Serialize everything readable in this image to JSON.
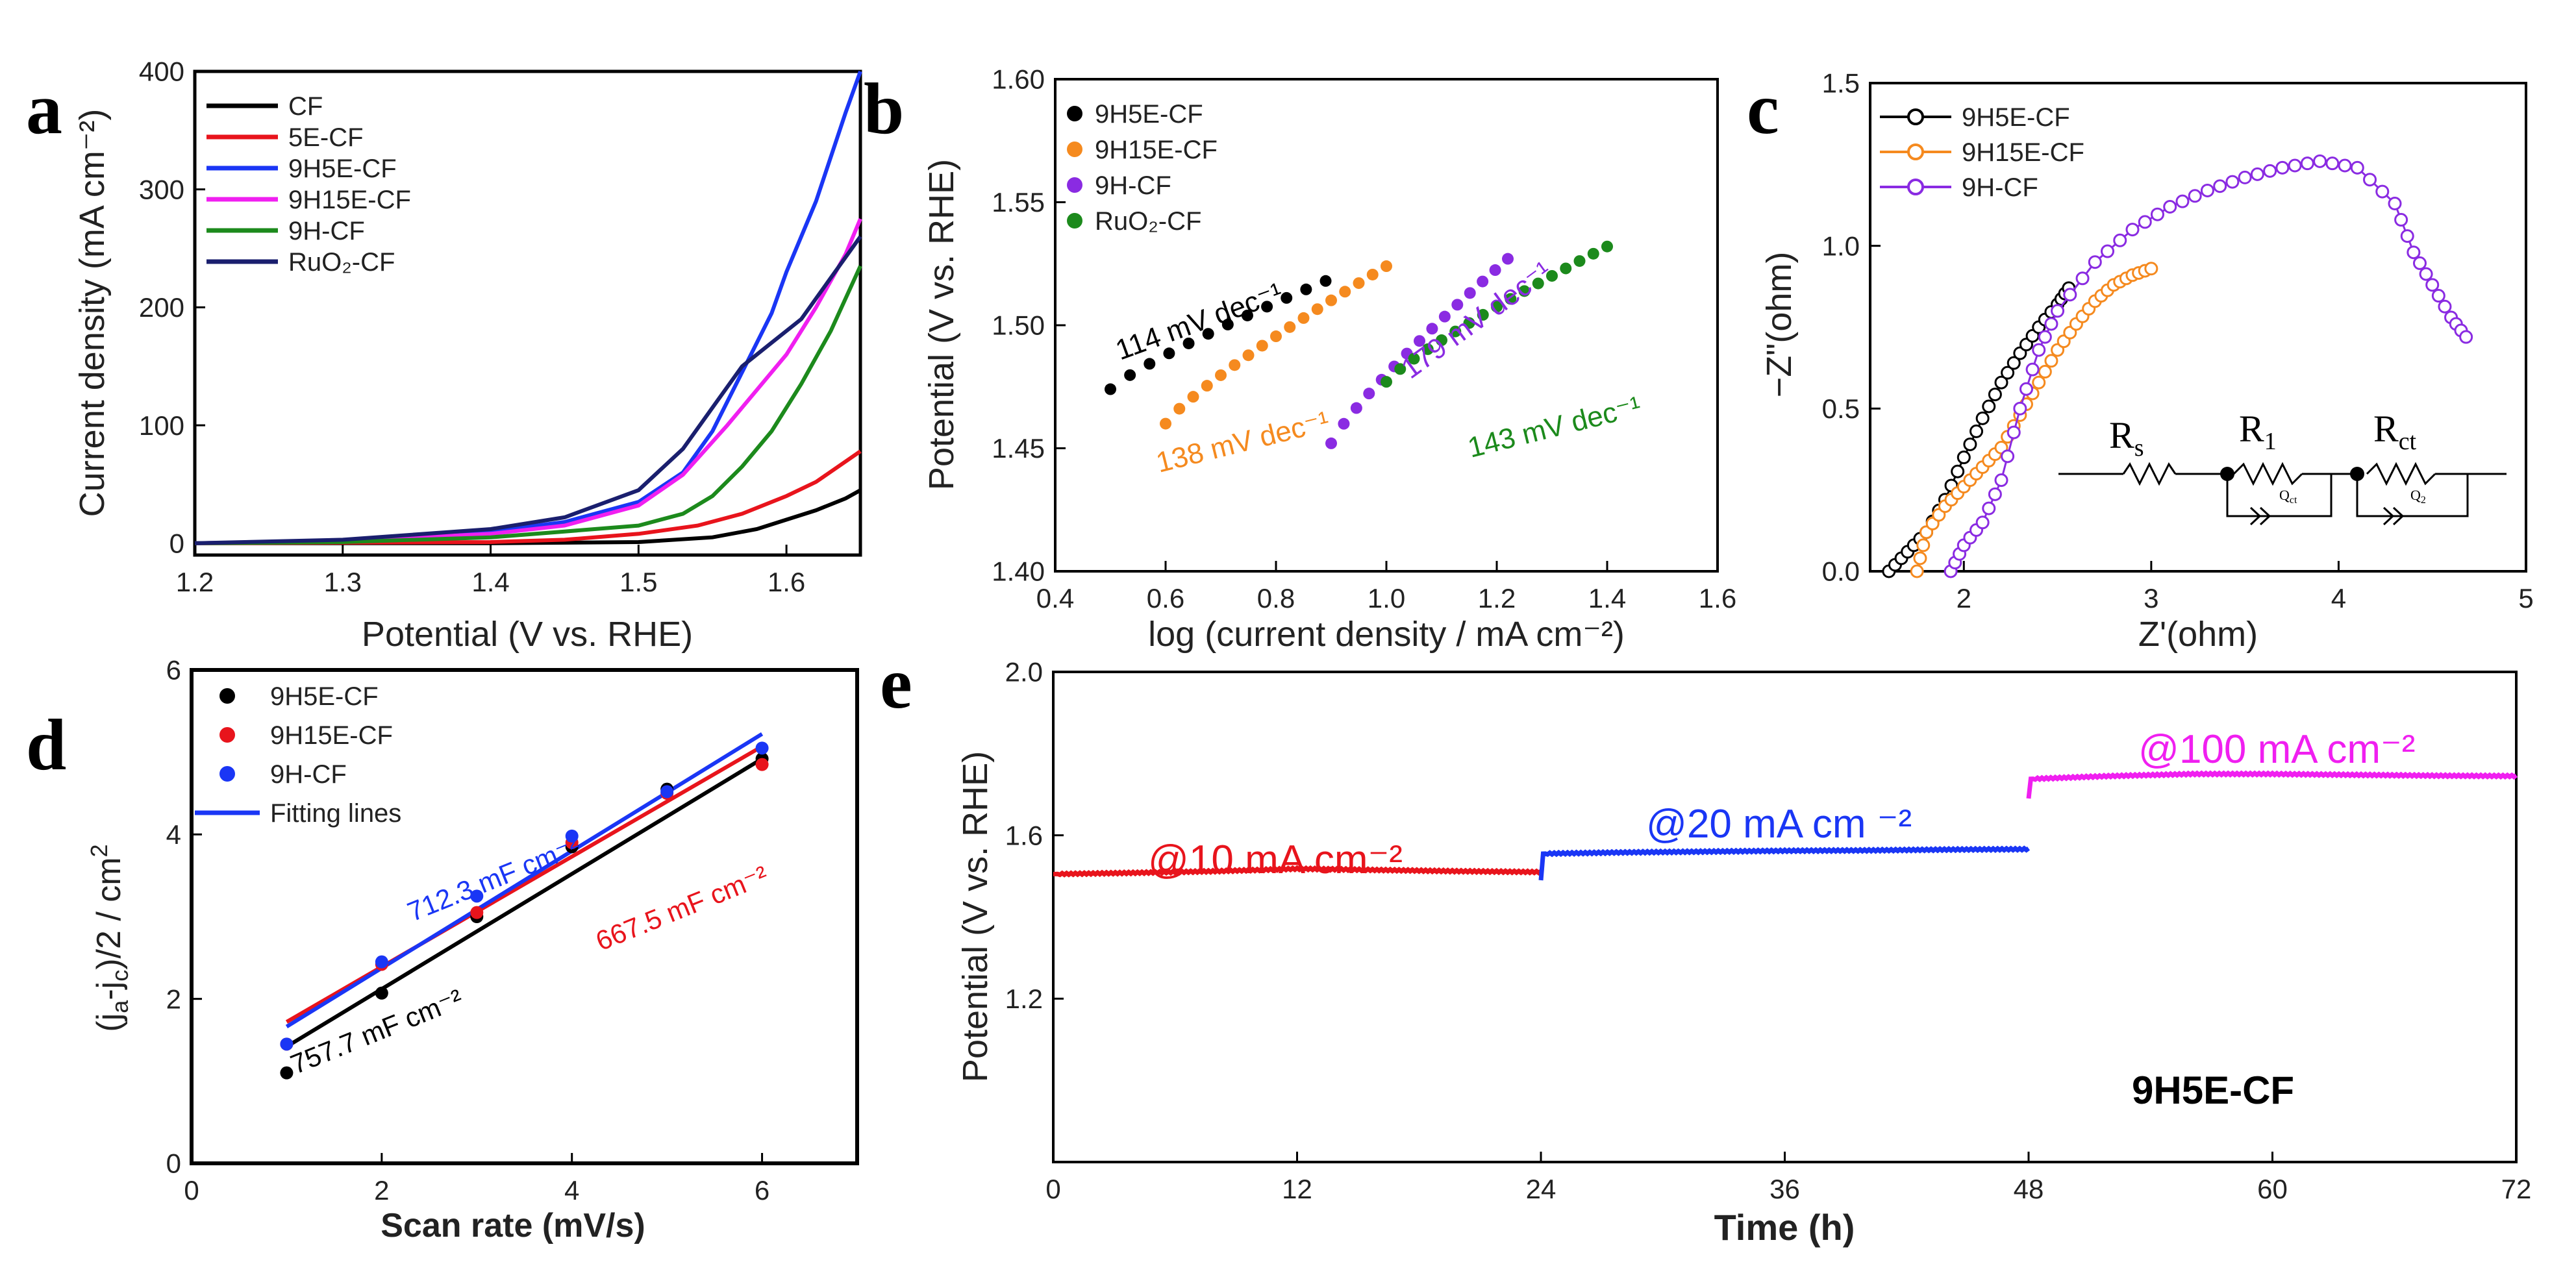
{
  "figure": {
    "panel_labels": [
      "a",
      "b",
      "c",
      "d",
      "e"
    ]
  },
  "chart_data": [
    {
      "panel": "a",
      "type": "line",
      "xlabel": "Potential (V vs. RHE)",
      "ylabel": "Current density (mA cm⁻²)",
      "xlim": [
        1.2,
        1.65
      ],
      "ylim": [
        -10,
        400
      ],
      "xticks": [
        1.2,
        1.3,
        1.4,
        1.5,
        1.6
      ],
      "yticks": [
        0,
        100,
        200,
        300,
        400
      ],
      "legend_position": "top-left",
      "series": [
        {
          "name": "CF",
          "label": "CF",
          "color": "#000000",
          "points": [
            [
              1.2,
              0
            ],
            [
              1.4,
              0
            ],
            [
              1.5,
              1
            ],
            [
              1.55,
              5
            ],
            [
              1.58,
              12
            ],
            [
              1.6,
              20
            ],
            [
              1.62,
              28
            ],
            [
              1.64,
              38
            ],
            [
              1.65,
              45
            ]
          ]
        },
        {
          "name": "5E-CF",
          "label": "5E-CF",
          "color": "#e8141c",
          "points": [
            [
              1.2,
              0
            ],
            [
              1.4,
              1
            ],
            [
              1.45,
              3
            ],
            [
              1.5,
              8
            ],
            [
              1.54,
              15
            ],
            [
              1.57,
              25
            ],
            [
              1.6,
              40
            ],
            [
              1.62,
              52
            ],
            [
              1.65,
              78
            ]
          ]
        },
        {
          "name": "9H5E-CF",
          "label": "9H5E-CF",
          "color": "#1a36f5",
          "points": [
            [
              1.2,
              0
            ],
            [
              1.3,
              2
            ],
            [
              1.4,
              10
            ],
            [
              1.45,
              18
            ],
            [
              1.5,
              35
            ],
            [
              1.53,
              60
            ],
            [
              1.55,
              95
            ],
            [
              1.57,
              145
            ],
            [
              1.59,
              195
            ],
            [
              1.6,
              230
            ],
            [
              1.62,
              290
            ],
            [
              1.64,
              365
            ],
            [
              1.65,
              400
            ]
          ]
        },
        {
          "name": "9H15E-CF",
          "label": "9H15E-CF",
          "color": "#f01ff0",
          "points": [
            [
              1.2,
              0
            ],
            [
              1.3,
              2
            ],
            [
              1.4,
              8
            ],
            [
              1.45,
              15
            ],
            [
              1.5,
              32
            ],
            [
              1.53,
              58
            ],
            [
              1.56,
              100
            ],
            [
              1.58,
              130
            ],
            [
              1.6,
              160
            ],
            [
              1.62,
              200
            ],
            [
              1.64,
              245
            ],
            [
              1.65,
              275
            ]
          ]
        },
        {
          "name": "9H-CF",
          "label": "9H-CF",
          "color": "#1c8a1c",
          "points": [
            [
              1.2,
              0
            ],
            [
              1.3,
              1
            ],
            [
              1.4,
              5
            ],
            [
              1.45,
              10
            ],
            [
              1.5,
              15
            ],
            [
              1.53,
              25
            ],
            [
              1.55,
              40
            ],
            [
              1.57,
              65
            ],
            [
              1.59,
              95
            ],
            [
              1.61,
              135
            ],
            [
              1.63,
              180
            ],
            [
              1.65,
              235
            ]
          ]
        },
        {
          "name": "RuO2-CF",
          "label": "RuO₂-CF",
          "color": "#1a1f6e",
          "points": [
            [
              1.2,
              0
            ],
            [
              1.3,
              3
            ],
            [
              1.4,
              12
            ],
            [
              1.45,
              22
            ],
            [
              1.5,
              45
            ],
            [
              1.53,
              80
            ],
            [
              1.55,
              115
            ],
            [
              1.57,
              150
            ],
            [
              1.59,
              170
            ],
            [
              1.61,
              190
            ],
            [
              1.63,
              225
            ],
            [
              1.65,
              260
            ]
          ]
        }
      ]
    },
    {
      "panel": "b",
      "type": "scatter",
      "xlabel": "log (current density / mA cm⁻²)",
      "ylabel": "Potential (V vs. RHE)",
      "xlim": [
        0.4,
        1.6
      ],
      "ylim": [
        1.4,
        1.6
      ],
      "xticks": [
        0.4,
        0.6,
        0.8,
        1.0,
        1.2,
        1.4,
        1.6
      ],
      "yticks": [
        1.4,
        1.45,
        1.5,
        1.55,
        1.6
      ],
      "legend_position": "top-left",
      "series": [
        {
          "name": "9H5E-CF",
          "label": "9H5E-CF",
          "color": "#000000",
          "x_range": [
            0.5,
            0.89
          ],
          "y_range": [
            1.474,
            1.518
          ],
          "count": 12
        },
        {
          "name": "9H15E-CF",
          "label": "9H15E-CF",
          "color": "#f58a1f",
          "x_range": [
            0.6,
            1.0
          ],
          "y_range": [
            1.46,
            1.524
          ],
          "count": 17
        },
        {
          "name": "9H-CF",
          "label": "9H-CF",
          "color": "#8a2be2",
          "x_range": [
            0.9,
            1.22
          ],
          "y_range": [
            1.452,
            1.527
          ],
          "count": 15
        },
        {
          "name": "RuO2-CF",
          "label": "RuO₂-CF",
          "color": "#1c8a1c",
          "x_range": [
            1.0,
            1.4
          ],
          "y_range": [
            1.477,
            1.532
          ],
          "count": 17
        }
      ],
      "annotations": [
        {
          "text": "114 mV dec⁻¹",
          "color": "#000000"
        },
        {
          "text": "138 mV dec⁻¹",
          "color": "#f58a1f"
        },
        {
          "text": "179 mV dec⁻¹",
          "color": "#8a2be2"
        },
        {
          "text": "143 mV dec⁻¹",
          "color": "#1c8a1c"
        }
      ]
    },
    {
      "panel": "c",
      "type": "line",
      "xlabel": "Z'(ohm)",
      "ylabel": "−Z\"(ohm)",
      "xlim": [
        1.5,
        5.0
      ],
      "ylim": [
        0.0,
        1.5
      ],
      "xticks": [
        2,
        3,
        4,
        5
      ],
      "yticks": [
        0.0,
        0.5,
        1.0,
        1.5
      ],
      "legend_position": "top-left",
      "series": [
        {
          "name": "9H5E-CF",
          "label": "9H5E-CF",
          "color": "#000000",
          "points": [
            [
              1.6,
              0
            ],
            [
              1.7,
              0.06
            ],
            [
              1.8,
              0.12
            ],
            [
              1.9,
              0.22
            ],
            [
              2.0,
              0.35
            ],
            [
              2.1,
              0.47
            ],
            [
              2.2,
              0.58
            ],
            [
              2.3,
              0.67
            ],
            [
              2.4,
              0.75
            ],
            [
              2.5,
              0.82
            ],
            [
              2.56,
              0.87
            ]
          ]
        },
        {
          "name": "9H15E-CF",
          "label": "9H15E-CF",
          "color": "#f58a1f",
          "points": [
            [
              1.75,
              0
            ],
            [
              1.8,
              0.12
            ],
            [
              1.9,
              0.2
            ],
            [
              2.0,
              0.26
            ],
            [
              2.1,
              0.32
            ],
            [
              2.2,
              0.38
            ],
            [
              2.3,
              0.48
            ],
            [
              2.4,
              0.58
            ],
            [
              2.5,
              0.68
            ],
            [
              2.6,
              0.76
            ],
            [
              2.7,
              0.83
            ],
            [
              2.8,
              0.88
            ],
            [
              2.9,
              0.91
            ],
            [
              3.0,
              0.93
            ]
          ]
        },
        {
          "name": "9H-CF",
          "label": "9H-CF",
          "color": "#8a2be2",
          "points": [
            [
              1.93,
              0
            ],
            [
              2.0,
              0.08
            ],
            [
              2.1,
              0.15
            ],
            [
              2.2,
              0.28
            ],
            [
              2.3,
              0.5
            ],
            [
              2.4,
              0.68
            ],
            [
              2.5,
              0.8
            ],
            [
              2.7,
              0.95
            ],
            [
              2.9,
              1.05
            ],
            [
              3.1,
              1.12
            ],
            [
              3.3,
              1.17
            ],
            [
              3.5,
              1.21
            ],
            [
              3.7,
              1.24
            ],
            [
              3.9,
              1.26
            ],
            [
              4.1,
              1.24
            ],
            [
              4.3,
              1.13
            ],
            [
              4.4,
              0.98
            ],
            [
              4.5,
              0.88
            ],
            [
              4.6,
              0.78
            ],
            [
              4.68,
              0.72
            ]
          ]
        }
      ],
      "circuit_labels": {
        "rs": "R",
        "rs_sub": "s",
        "r1": "R",
        "r1_sub": "1",
        "rct": "R",
        "rct_sub": "ct",
        "q1": "Q",
        "q1_sub": "ct",
        "q2": "Q",
        "q2_sub": "2"
      }
    },
    {
      "panel": "d",
      "type": "scatter",
      "xlabel": "Scan rate (mV/s)",
      "ylabel": "(jₐ-jᴄ)/2 / cm²",
      "ylabel_parts": {
        "lead": "(j",
        "sub_a": "a",
        "mid": "-j",
        "sub_c": "c",
        "tail": ")/2 / cm",
        "sup": "2"
      },
      "xlim": [
        0,
        7
      ],
      "ylim": [
        0,
        6
      ],
      "xticks": [
        0,
        2,
        4,
        6
      ],
      "yticks": [
        0,
        2,
        4,
        6
      ],
      "legend_position": "top-left",
      "series": [
        {
          "name": "9H5E-CF",
          "label": "9H5E-CF",
          "color": "#000000",
          "x": [
            1,
            2,
            3,
            4,
            5,
            6
          ],
          "y": [
            1.1,
            2.07,
            3.0,
            3.85,
            4.55,
            4.92
          ],
          "fit": [
            0.7,
            0.72
          ]
        },
        {
          "name": "9H15E-CF",
          "label": "9H15E-CF",
          "color": "#e8141c",
          "x": [
            1,
            2,
            3,
            4,
            5,
            6
          ],
          "y": [
            1.45,
            2.42,
            3.05,
            3.9,
            4.5,
            4.85
          ],
          "fit": [
            0.67,
            1.05
          ]
        },
        {
          "name": "9H-CF",
          "label": "9H-CF",
          "color": "#1a36f5",
          "x": [
            1,
            2,
            3,
            4,
            5,
            6
          ],
          "y": [
            1.45,
            2.45,
            3.25,
            3.98,
            4.52,
            5.05
          ],
          "fit": [
            0.712,
            0.95
          ]
        }
      ],
      "fit_legend": {
        "label": "Fitting lines",
        "color": "#1a36f5"
      },
      "annotations": [
        {
          "text": "712.3 mF cm⁻²",
          "color": "#1a36f5"
        },
        {
          "text": "667.5 mF cm⁻²",
          "color": "#e8141c"
        },
        {
          "text": "757.7 mF cm⁻²",
          "color": "#000000"
        }
      ]
    },
    {
      "panel": "e",
      "type": "line",
      "xlabel": "Time (h)",
      "ylabel": "Potential (V vs. RHE)",
      "xlim": [
        0,
        72
      ],
      "ylim": [
        0.8,
        2.0
      ],
      "xticks": [
        0,
        12,
        24,
        36,
        48,
        60,
        72
      ],
      "yticks": [
        1.2,
        1.6,
        2.0
      ],
      "sample_label": "9H5E-CF",
      "series": [
        {
          "name": "10 mA",
          "label": "@10 mA cm⁻²",
          "color": "#e8141c",
          "points": [
            [
              0,
              1.505
            ],
            [
              4,
              1.508
            ],
            [
              8,
              1.512
            ],
            [
              12,
              1.518
            ],
            [
              16,
              1.515
            ],
            [
              20,
              1.512
            ],
            [
              24,
              1.51
            ]
          ]
        },
        {
          "name": "20 mA",
          "label": "@20 mA cm ⁻²",
          "color": "#1a36f5",
          "points": [
            [
              24,
              1.49
            ],
            [
              24.1,
              1.555
            ],
            [
              28,
              1.558
            ],
            [
              32,
              1.56
            ],
            [
              36,
              1.562
            ],
            [
              40,
              1.563
            ],
            [
              44,
              1.565
            ],
            [
              48,
              1.566
            ]
          ]
        },
        {
          "name": "100 mA",
          "label": "@100 mA cm⁻²",
          "color": "#f01ff0",
          "points": [
            [
              48,
              1.69
            ],
            [
              48.1,
              1.738
            ],
            [
              52,
              1.745
            ],
            [
              56,
              1.75
            ],
            [
              60,
              1.75
            ],
            [
              64,
              1.748
            ],
            [
              68,
              1.746
            ],
            [
              72,
              1.745
            ]
          ]
        }
      ]
    }
  ]
}
